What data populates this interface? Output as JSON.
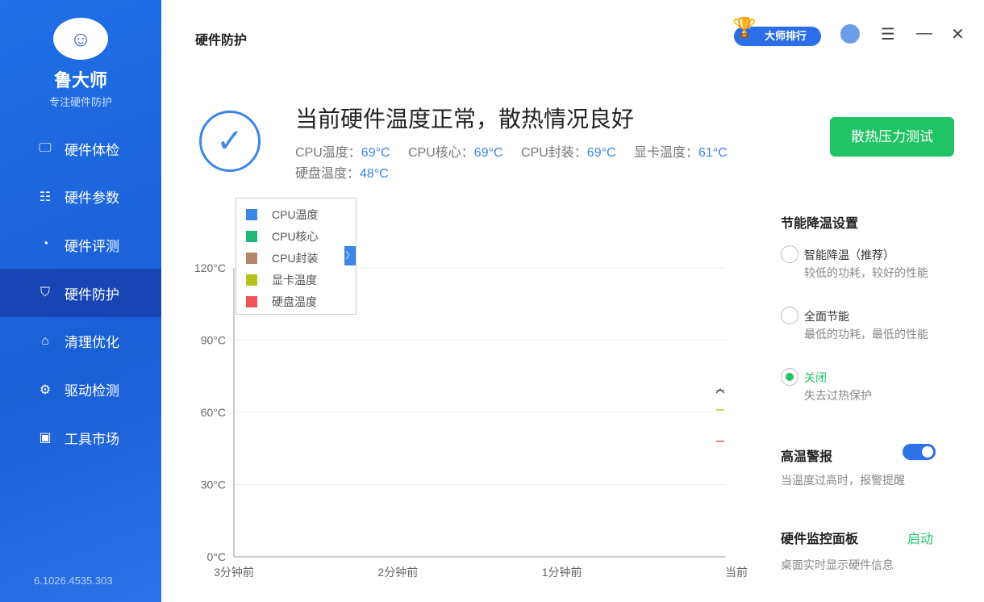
{
  "sidebar": {
    "brand": "鲁大师",
    "tagline": "专注硬件防护",
    "version": "6.1026.4535.303",
    "items": [
      {
        "label": "硬件体检",
        "icon": "monitor-icon"
      },
      {
        "label": "硬件参数",
        "icon": "list-icon"
      },
      {
        "label": "硬件评测",
        "icon": "gauge-icon"
      },
      {
        "label": "硬件防护",
        "icon": "shield-icon",
        "active": true
      },
      {
        "label": "清理优化",
        "icon": "broom-icon"
      },
      {
        "label": "驱动检测",
        "icon": "gear-icon"
      },
      {
        "label": "工具市场",
        "icon": "toolbox-icon"
      }
    ]
  },
  "header": {
    "title": "硬件防护",
    "rank_label": "大师排行"
  },
  "status": {
    "headline": "当前硬件温度正常，散热情况良好",
    "temps": [
      {
        "label": "CPU温度：",
        "value": "69°C"
      },
      {
        "label": "CPU核心：",
        "value": "69°C"
      },
      {
        "label": "CPU封装：",
        "value": "69°C"
      },
      {
        "label": "显卡温度：",
        "value": "61°C"
      },
      {
        "label": "硬盘温度：",
        "value": "48°C"
      }
    ],
    "stress_button": "散热压力测试"
  },
  "settings": {
    "title": "节能降温设置",
    "options": [
      {
        "label": "智能降温（推荐）",
        "desc": "较低的功耗，较好的性能",
        "selected": false
      },
      {
        "label": "全面节能",
        "desc": "最低的功耗，最低的性能",
        "selected": false
      },
      {
        "label": "关闭",
        "desc": "失去过热保护",
        "selected": true
      }
    ],
    "alarm": {
      "title": "高温警报",
      "desc": "当温度过高时，报警提醒",
      "enabled": true
    },
    "monitor": {
      "title": "硬件监控面板",
      "action": "启动",
      "desc": "桌面实时显示硬件信息"
    }
  },
  "chart_data": {
    "type": "line",
    "x_labels": [
      "3分钟前",
      "2分钟前",
      "1分钟前",
      "当前"
    ],
    "y_ticks": [
      "0°C",
      "30°C",
      "60°C",
      "90°C",
      "120°C"
    ],
    "ylim": [
      0,
      120
    ],
    "grid": true,
    "legend_placement": "top-left",
    "series": [
      {
        "name": "CPU温度",
        "color": "#3b86e6",
        "values": [
          69
        ]
      },
      {
        "name": "CPU核心",
        "color": "#1fb87a",
        "values": [
          69
        ]
      },
      {
        "name": "CPU封装",
        "color": "#b5866a",
        "values": [
          69
        ]
      },
      {
        "name": "显卡温度",
        "color": "#b2c41a",
        "values": [
          61
        ]
      },
      {
        "name": "硬盘温度",
        "color": "#ee5555",
        "values": [
          48
        ]
      }
    ]
  },
  "colors": {
    "accent": "#3b86e6",
    "green": "#20c465",
    "sidebar": "#1f6fe6"
  }
}
